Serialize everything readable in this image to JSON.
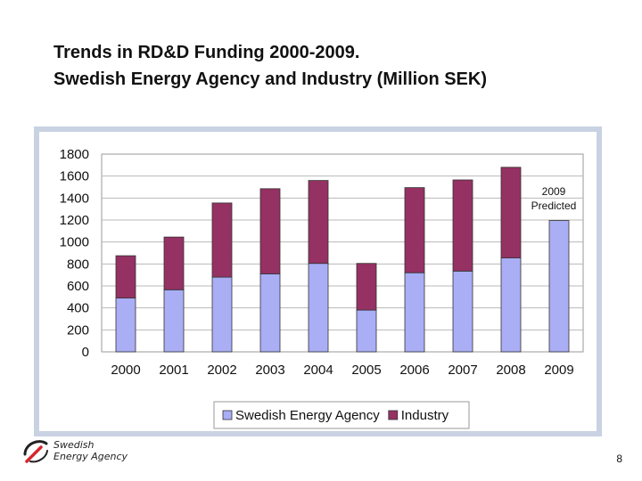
{
  "slide": {
    "title_line1": "Trends in RD&D Funding 2000-2009.",
    "title_line2": "Swedish Energy Agency and Industry (Million SEK)",
    "page_number": "8",
    "logo": {
      "line1": "Swedish",
      "line2": "Energy Agency"
    }
  },
  "chart_data": {
    "type": "bar",
    "stacked": true,
    "title": "",
    "xlabel": "",
    "ylabel": "",
    "categories": [
      "2000",
      "2001",
      "2002",
      "2003",
      "2004",
      "2005",
      "2006",
      "2007",
      "2008",
      "2009"
    ],
    "series": [
      {
        "name": "Swedish Energy Agency",
        "color": "#a9aef5",
        "values": [
          490,
          565,
          680,
          710,
          805,
          380,
          720,
          735,
          855,
          1195
        ]
      },
      {
        "name": "Industry",
        "color": "#953163",
        "values": [
          385,
          480,
          675,
          775,
          755,
          425,
          775,
          830,
          825,
          0
        ]
      }
    ],
    "ylim": [
      0,
      1800
    ],
    "yticks": [
      0,
      200,
      400,
      600,
      800,
      1000,
      1200,
      1400,
      1600,
      1800
    ],
    "grid": true,
    "legend_position": "bottom",
    "annotations": [
      {
        "category": "2009",
        "text": [
          "2009",
          "Predicted"
        ]
      }
    ]
  }
}
